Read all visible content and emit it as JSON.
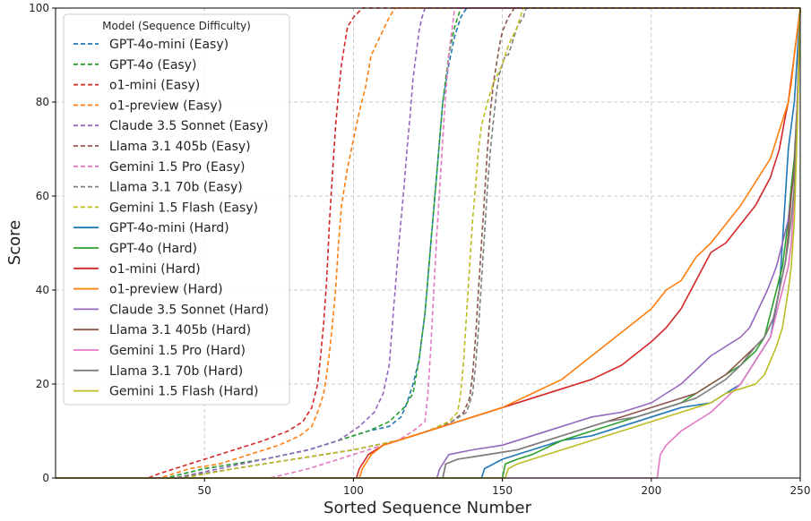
{
  "chart_data": {
    "type": "line",
    "xlabel": "Sorted Sequence Number",
    "ylabel": "Score",
    "xlim": [
      0,
      250
    ],
    "ylim": [
      0,
      100
    ],
    "xticks": [
      50,
      100,
      150,
      200,
      250
    ],
    "yticks": [
      0,
      20,
      40,
      60,
      80,
      100
    ],
    "grid": true,
    "legend_title": "Model (Sequence Difficulty)",
    "legend_position": "top-left",
    "series": [
      {
        "name": "GPT-4o-mini (Easy)",
        "color": "#1f77b4",
        "dashed": true,
        "x": [
          37,
          50,
          70,
          85,
          95,
          105,
          112,
          116,
          118,
          120,
          122,
          124,
          126,
          128,
          130,
          132,
          134,
          136,
          138,
          250
        ],
        "y": [
          0,
          2,
          4,
          6,
          8,
          10,
          11,
          13,
          16,
          20,
          25,
          35,
          50,
          65,
          80,
          88,
          94,
          98,
          100,
          100
        ]
      },
      {
        "name": "GPT-4o (Easy)",
        "color": "#2ca02c",
        "dashed": true,
        "x": [
          37,
          50,
          70,
          85,
          95,
          105,
          112,
          117,
          120,
          122,
          124,
          126,
          128,
          130,
          132,
          134,
          136,
          250
        ],
        "y": [
          0,
          2,
          4,
          6,
          8,
          10,
          12,
          15,
          18,
          25,
          35,
          50,
          65,
          80,
          90,
          96,
          100,
          100
        ]
      },
      {
        "name": "o1-mini (Easy)",
        "color": "#d62728",
        "dashed": true,
        "x": [
          31,
          35,
          40,
          50,
          60,
          70,
          78,
          83,
          86,
          88,
          89,
          90,
          91,
          92,
          93,
          94,
          95,
          96,
          97,
          98,
          100,
          103,
          250
        ],
        "y": [
          0,
          1,
          2,
          4,
          6,
          8,
          10,
          12,
          15,
          20,
          26,
          33,
          42,
          55,
          65,
          75,
          82,
          88,
          92,
          96,
          98,
          100,
          100
        ]
      },
      {
        "name": "o1-preview (Easy)",
        "color": "#ff7f0e",
        "dashed": true,
        "x": [
          35,
          45,
          55,
          65,
          75,
          82,
          86,
          88,
          90,
          91,
          92,
          93,
          94,
          95,
          96,
          98,
          100,
          102,
          104,
          106,
          109,
          112,
          114,
          250
        ],
        "y": [
          0,
          2,
          3,
          5,
          7,
          9,
          11,
          14,
          18,
          22,
          27,
          33,
          40,
          50,
          58,
          66,
          72,
          78,
          83,
          90,
          94,
          98,
          100,
          100
        ]
      },
      {
        "name": "Claude 3.5 Sonnet (Easy)",
        "color": "#9467bd",
        "dashed": true,
        "x": [
          40,
          55,
          70,
          85,
          95,
          102,
          107,
          110,
          112,
          113,
          114,
          115,
          116,
          117,
          118,
          119,
          120,
          121,
          122,
          123,
          124,
          250
        ],
        "y": [
          0,
          2,
          4,
          6,
          8,
          11,
          14,
          18,
          24,
          32,
          40,
          48,
          55,
          62,
          70,
          77,
          85,
          90,
          95,
          98,
          100,
          100
        ]
      },
      {
        "name": "Llama 3.1 405b (Easy)",
        "color": "#8c564b",
        "dashed": true,
        "x": [
          40,
          60,
          80,
          100,
          115,
          125,
          133,
          137,
          139,
          140,
          141,
          142,
          143,
          144,
          145,
          146,
          147,
          148,
          149,
          150,
          152,
          154,
          250
        ],
        "y": [
          0,
          2,
          4,
          6,
          8,
          10,
          12,
          14,
          17,
          22,
          30,
          40,
          50,
          60,
          70,
          78,
          84,
          88,
          92,
          95,
          98,
          100,
          100
        ]
      },
      {
        "name": "Gemini 1.5 Pro (Easy)",
        "color": "#e377c2",
        "dashed": true,
        "x": [
          72,
          85,
          95,
          105,
          115,
          120,
          124,
          125,
          126,
          127,
          128,
          129,
          130,
          131,
          132,
          133,
          134,
          250
        ],
        "y": [
          0,
          2,
          4,
          6,
          8,
          10,
          12,
          18,
          28,
          40,
          52,
          62,
          72,
          82,
          90,
          95,
          100,
          100
        ]
      },
      {
        "name": "Llama 3.1 70b (Easy)",
        "color": "#7f7f7f",
        "dashed": true,
        "x": [
          40,
          60,
          80,
          100,
          115,
          125,
          133,
          138,
          140,
          141,
          142,
          143,
          144,
          145,
          146,
          147,
          148,
          149,
          150,
          151,
          152,
          153,
          154,
          155,
          157,
          158,
          250
        ],
        "y": [
          0,
          2,
          4,
          6,
          8,
          10,
          12,
          14,
          18,
          24,
          32,
          42,
          52,
          62,
          70,
          76,
          82,
          86,
          88,
          90,
          90,
          92,
          94,
          96,
          98,
          100,
          100
        ]
      },
      {
        "name": "Gemini 1.5 Flash (Easy)",
        "color": "#bcbd22",
        "dashed": true,
        "x": [
          43,
          60,
          80,
          100,
          115,
          125,
          132,
          135,
          136,
          137,
          138,
          139,
          140,
          141,
          142,
          143,
          145,
          147,
          150,
          152,
          155,
          157,
          250
        ],
        "y": [
          0,
          2,
          4,
          6,
          8,
          10,
          12,
          14,
          18,
          25,
          35,
          45,
          55,
          62,
          70,
          75,
          80,
          84,
          88,
          92,
          96,
          100,
          100
        ]
      },
      {
        "name": "GPT-4o-mini (Hard)",
        "color": "#1f77b4",
        "dashed": false,
        "x": [
          143,
          144,
          150,
          160,
          170,
          180,
          190,
          200,
          210,
          220,
          225,
          230,
          235,
          240,
          243,
          244,
          245,
          246,
          247,
          248,
          249,
          250
        ],
        "y": [
          0,
          2,
          4,
          6,
          8,
          9,
          11,
          13,
          15,
          16,
          18,
          20,
          25,
          30,
          40,
          50,
          60,
          70,
          75,
          80,
          90,
          100
        ]
      },
      {
        "name": "GPT-4o (Hard)",
        "color": "#2ca02c",
        "dashed": false,
        "x": [
          150,
          151,
          155,
          160,
          170,
          180,
          190,
          200,
          210,
          215,
          220,
          225,
          230,
          235,
          238,
          240,
          242,
          244,
          245,
          246,
          247,
          248,
          249,
          250
        ],
        "y": [
          0,
          3,
          4,
          5,
          8,
          10,
          12,
          14,
          16,
          18,
          20,
          22,
          24,
          27,
          30,
          35,
          40,
          45,
          50,
          55,
          62,
          68,
          80,
          100
        ]
      },
      {
        "name": "o1-mini (Hard)",
        "color": "#d62728",
        "dashed": false,
        "x": [
          101,
          102,
          105,
          110,
          120,
          130,
          140,
          150,
          160,
          170,
          180,
          190,
          200,
          205,
          210,
          215,
          220,
          225,
          230,
          235,
          240,
          243,
          245,
          246,
          247,
          248,
          249,
          250
        ],
        "y": [
          0,
          2,
          5,
          7,
          9,
          11,
          13,
          15,
          17,
          19,
          21,
          24,
          29,
          32,
          36,
          42,
          48,
          50,
          54,
          58,
          64,
          70,
          77,
          80,
          85,
          90,
          95,
          100
        ]
      },
      {
        "name": "o1-preview (Hard)",
        "color": "#ff7f0e",
        "dashed": false,
        "x": [
          102,
          103,
          106,
          110,
          120,
          130,
          140,
          150,
          160,
          170,
          180,
          190,
          200,
          205,
          210,
          215,
          220,
          225,
          230,
          235,
          240,
          243,
          245,
          246,
          247,
          248,
          249,
          250
        ],
        "y": [
          0,
          2,
          5,
          7,
          9,
          11,
          13,
          15,
          18,
          21,
          26,
          31,
          36,
          40,
          42,
          47,
          50,
          54,
          58,
          63,
          68,
          74,
          78,
          80,
          84,
          90,
          95,
          100
        ]
      },
      {
        "name": "Claude 3.5 Sonnet (Hard)",
        "color": "#9467bd",
        "dashed": false,
        "x": [
          128,
          129,
          132,
          140,
          150,
          160,
          170,
          180,
          190,
          200,
          210,
          215,
          220,
          225,
          230,
          233,
          236,
          239,
          242,
          244,
          246,
          247,
          248,
          249,
          250
        ],
        "y": [
          0,
          2,
          5,
          6,
          7,
          9,
          11,
          13,
          14,
          16,
          20,
          23,
          26,
          28,
          30,
          32,
          36,
          40,
          45,
          50,
          55,
          60,
          65,
          80,
          100
        ]
      },
      {
        "name": "Llama 3.1 405b (Hard)",
        "color": "#8c564b",
        "dashed": false,
        "x": [
          130,
          131,
          135,
          145,
          155,
          165,
          175,
          185,
          195,
          205,
          215,
          220,
          225,
          230,
          235,
          238,
          241,
          243,
          245,
          246,
          247,
          248,
          249,
          250
        ],
        "y": [
          0,
          3,
          4,
          5,
          6,
          8,
          10,
          12,
          14,
          16,
          18,
          20,
          22,
          25,
          28,
          30,
          34,
          40,
          46,
          52,
          60,
          66,
          80,
          100
        ]
      },
      {
        "name": "Gemini 1.5 Pro (Hard)",
        "color": "#e377c2",
        "dashed": false,
        "x": [
          202,
          203,
          205,
          210,
          215,
          220,
          225,
          230,
          235,
          238,
          240,
          242,
          244,
          246,
          247,
          248,
          249,
          250
        ],
        "y": [
          0,
          5,
          7,
          10,
          12,
          14,
          17,
          20,
          25,
          28,
          30,
          35,
          40,
          45,
          50,
          60,
          80,
          100
        ]
      },
      {
        "name": "Llama 3.1 70b (Hard)",
        "color": "#7f7f7f",
        "dashed": false,
        "x": [
          130,
          131,
          135,
          145,
          155,
          165,
          175,
          185,
          195,
          205,
          215,
          220,
          225,
          230,
          235,
          238,
          241,
          243,
          245,
          246,
          247,
          248,
          249,
          250
        ],
        "y": [
          0,
          3,
          4,
          5,
          6,
          8,
          10,
          12,
          13,
          15,
          17,
          19,
          21,
          24,
          28,
          30,
          34,
          40,
          46,
          50,
          55,
          62,
          78,
          100
        ]
      },
      {
        "name": "Gemini 1.5 Flash (Hard)",
        "color": "#bcbd22",
        "dashed": false,
        "x": [
          151,
          152,
          155,
          160,
          170,
          180,
          190,
          200,
          210,
          220,
          225,
          230,
          235,
          238,
          240,
          242,
          244,
          246,
          247,
          248,
          249,
          250
        ],
        "y": [
          0,
          2,
          3,
          4,
          6,
          8,
          10,
          12,
          14,
          16,
          18,
          19,
          20,
          22,
          25,
          28,
          32,
          40,
          45,
          55,
          75,
          100
        ]
      }
    ]
  }
}
